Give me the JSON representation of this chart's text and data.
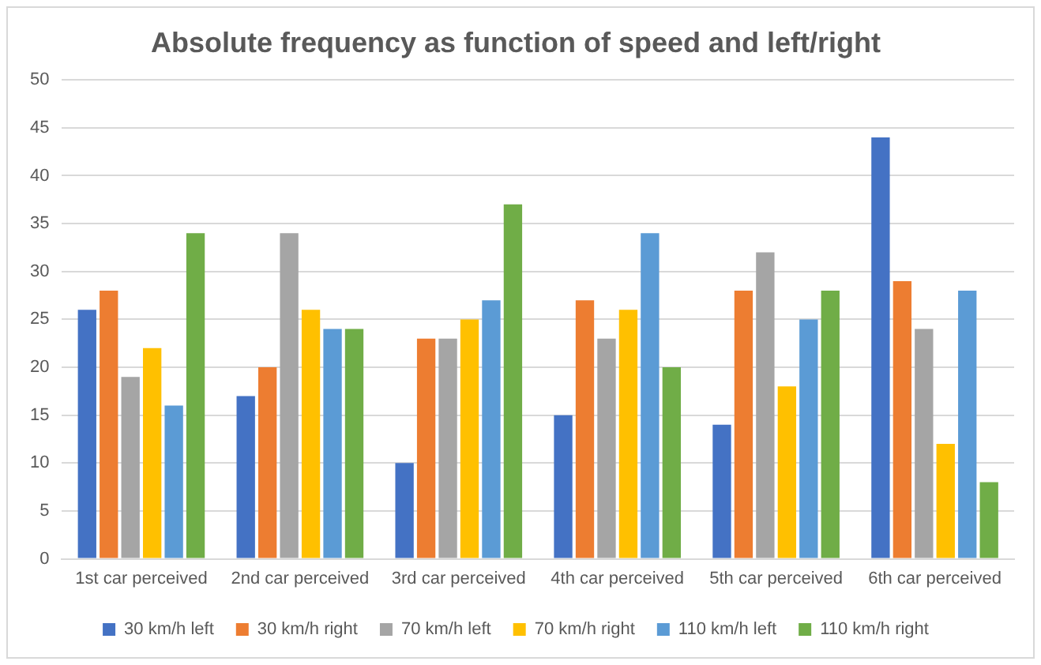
{
  "chart_data": {
    "type": "bar",
    "title": "Absolute frequency as function of speed and left/right",
    "categories": [
      "1st car perceived",
      "2nd car perceived",
      "3rd car perceived",
      "4th car perceived",
      "5th car perceived",
      "6th car perceived"
    ],
    "series": [
      {
        "name": "30 km/h left",
        "color": "#4472c4",
        "values": [
          26,
          17,
          10,
          15,
          14,
          44
        ]
      },
      {
        "name": "30 km/h right",
        "color": "#ed7d31",
        "values": [
          28,
          20,
          23,
          27,
          28,
          29
        ]
      },
      {
        "name": "70 km/h left",
        "color": "#a5a5a5",
        "values": [
          19,
          34,
          23,
          23,
          32,
          24
        ]
      },
      {
        "name": "70 km/h right",
        "color": "#ffc000",
        "values": [
          22,
          26,
          25,
          26,
          18,
          12
        ]
      },
      {
        "name": "110 km/h left",
        "color": "#5b9bd5",
        "values": [
          16,
          24,
          27,
          34,
          25,
          28
        ]
      },
      {
        "name": "110 km/h right",
        "color": "#70ad47",
        "values": [
          34,
          24,
          37,
          20,
          28,
          8
        ]
      }
    ],
    "ylim": [
      0,
      50
    ],
    "yticks": [
      0,
      5,
      10,
      15,
      20,
      25,
      30,
      35,
      40,
      45,
      50
    ],
    "grid": "y",
    "legend": "bottom"
  }
}
